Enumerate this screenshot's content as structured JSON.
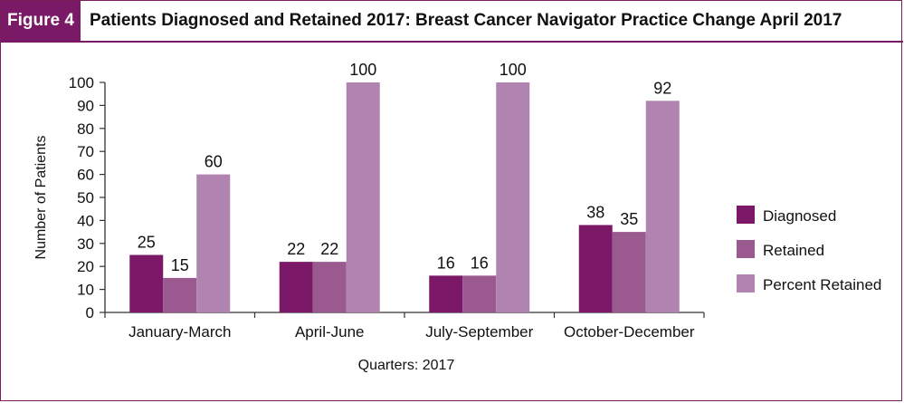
{
  "figure": {
    "label": "Figure 4",
    "title": "Patients Diagnosed and Retained 2017: Breast Cancer Navigator Practice Change April 2017"
  },
  "colors": {
    "Diagnosed": "#7b1867",
    "Retained": "#9b5a8f",
    "Percent Retained": "#b083b0",
    "brand": "#7a1a66"
  },
  "chart_data": {
    "type": "bar",
    "xlabel": "Quarters: 2017",
    "ylabel": "Number of Patients",
    "ylim": [
      0,
      100
    ],
    "yticks": [
      0,
      10,
      20,
      30,
      40,
      50,
      60,
      70,
      80,
      90,
      100
    ],
    "categories": [
      "January-March",
      "April-June",
      "July-September",
      "October-December"
    ],
    "series": [
      {
        "name": "Diagnosed",
        "values": [
          25,
          22,
          16,
          38
        ]
      },
      {
        "name": "Retained",
        "values": [
          15,
          22,
          16,
          35
        ]
      },
      {
        "name": "Percent Retained",
        "values": [
          60,
          100,
          100,
          92
        ]
      }
    ],
    "legend_position": "right",
    "grid": false
  }
}
